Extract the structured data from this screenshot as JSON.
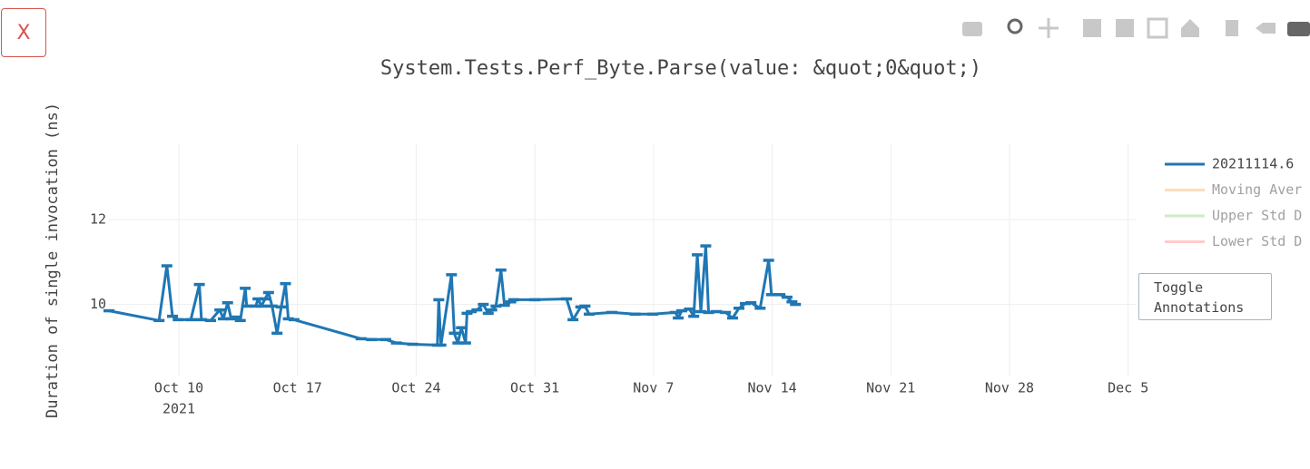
{
  "close_button": "X",
  "toggle_button": "Toggle Annotations",
  "chart_data": {
    "type": "line",
    "title": "System.Tests.Perf_Byte.Parse(value: &quot;0&quot;)",
    "y_label": "Duration of single invocation (ns)",
    "x": [
      "2021-10-05 21:00",
      "2021-10-08 20:00",
      "2021-10-09 07:00",
      "2021-10-09 15:00",
      "2021-10-09 23:00",
      "2021-10-10 17:00",
      "2021-10-11 05:00",
      "2021-10-11 08:00",
      "2021-10-11 21:00",
      "2021-10-12 10:00",
      "2021-10-12 15:00",
      "2021-10-12 21:00",
      "2021-10-13 02:00",
      "2021-10-13 09:00",
      "2021-10-13 15:00",
      "2021-10-13 22:00",
      "2021-10-14 00:00",
      "2021-10-14 13:00",
      "2021-10-14 16:00",
      "2021-10-14 21:00",
      "2021-10-15 02:00",
      "2021-10-15 07:00",
      "2021-10-15 12:00",
      "2021-10-15 19:00",
      "2021-10-16 01:00",
      "2021-10-16 07:00",
      "2021-10-16 11:00",
      "2021-10-16 19:00",
      "2021-10-20 18:00",
      "2021-10-21 09:00",
      "2021-10-22 05:00",
      "2021-10-22 20:00",
      "2021-10-23 19:00",
      "2021-10-25 06:00",
      "2021-10-25 08:00",
      "2021-10-25 11:00",
      "2021-10-26 02:00",
      "2021-10-26 06:00",
      "2021-10-26 11:00",
      "2021-10-26 16:00",
      "2021-10-26 22:00",
      "2021-10-27 00:00",
      "2021-10-27 06:00",
      "2021-10-27 14:00",
      "2021-10-27 23:00",
      "2021-10-28 06:00",
      "2021-10-28 11:00",
      "2021-10-28 17:00",
      "2021-10-29 00:00",
      "2021-10-29 05:00",
      "2021-10-29 14:00",
      "2021-10-29 18:00",
      "2021-10-31 00:00",
      "2021-11-01 21:00",
      "2021-11-02 06:00",
      "2021-11-02 17:00",
      "2021-11-02 23:00",
      "2021-11-03 05:00",
      "2021-11-04 13:00",
      "2021-11-05 22:00",
      "2021-11-06 23:00",
      "2021-11-08 07:00",
      "2021-11-08 11:00",
      "2021-11-08 16:00",
      "2021-11-09 03:00",
      "2021-11-09 09:00",
      "2021-11-09 14:00",
      "2021-11-09 19:00",
      "2021-11-10 02:00",
      "2021-11-10 06:00",
      "2021-11-10 17:00",
      "2021-11-11 06:00",
      "2021-11-11 16:00",
      "2021-11-12 01:00",
      "2021-11-12 10:00",
      "2021-11-12 18:00",
      "2021-11-13 07:00",
      "2021-11-13 19:00",
      "2021-11-13 23:00",
      "2021-11-14 11:00",
      "2021-11-14 21:00",
      "2021-11-15 04:00",
      "2021-11-15 09:00"
    ],
    "series": [
      {
        "name": "20211114.6",
        "color": "#1f77b4",
        "values": [
          9.85,
          9.62,
          10.91,
          9.72,
          9.64,
          9.64,
          10.47,
          9.64,
          9.62,
          9.87,
          9.66,
          10.04,
          9.66,
          9.7,
          9.62,
          10.38,
          9.96,
          9.96,
          10.13,
          9.96,
          10.13,
          10.28,
          9.96,
          9.32,
          9.94,
          10.49,
          9.66,
          9.64,
          9.19,
          9.17,
          9.17,
          9.09,
          9.06,
          9.04,
          10.11,
          9.04,
          10.7,
          9.32,
          9.09,
          9.45,
          9.09,
          9.79,
          9.83,
          9.87,
          10.0,
          9.79,
          9.87,
          9.96,
          10.81,
          9.98,
          10.06,
          10.11,
          10.11,
          10.13,
          9.64,
          9.94,
          9.96,
          9.77,
          9.81,
          9.77,
          9.77,
          9.81,
          9.68,
          9.85,
          9.89,
          9.72,
          11.17,
          9.83,
          11.38,
          9.81,
          9.83,
          9.81,
          9.68,
          9.91,
          10.02,
          10.04,
          9.91,
          11.04,
          10.23,
          10.23,
          10.17,
          10.06,
          10.0
        ]
      }
    ],
    "hidden_series": [
      {
        "name": "Moving Aver",
        "color": "#ffbb78"
      },
      {
        "name": "Upper Std D",
        "color": "#98df8a"
      },
      {
        "name": "Lower Std D",
        "color": "#ff9896"
      }
    ],
    "xlim": [
      "2021-10-05 21:00",
      "2021-12-05 12:00"
    ],
    "xticks": [
      {
        "value": "2021-10-10",
        "label": "Oct 10"
      },
      {
        "value": "2021-10-17",
        "label": "Oct 17"
      },
      {
        "value": "2021-10-24",
        "label": "Oct 24"
      },
      {
        "value": "2021-10-31",
        "label": "Oct 31"
      },
      {
        "value": "2021-11-07",
        "label": "Nov 7"
      },
      {
        "value": "2021-11-14",
        "label": "Nov 14"
      },
      {
        "value": "2021-11-21",
        "label": "Nov 21"
      },
      {
        "value": "2021-11-28",
        "label": "Nov 28"
      },
      {
        "value": "2021-12-05",
        "label": "Dec 5"
      }
    ],
    "x_year_label": "2021",
    "ylim": [
      8.3,
      13.8
    ],
    "yticks": [
      10,
      12
    ],
    "grid": true
  }
}
